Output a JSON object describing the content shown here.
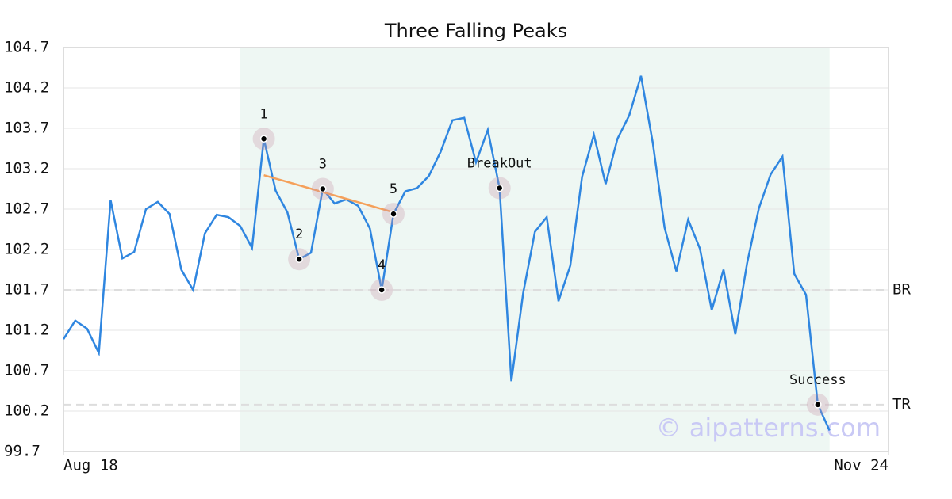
{
  "chart_data": {
    "type": "line",
    "title": "Three Falling Peaks",
    "values": [
      101.09,
      101.32,
      101.22,
      100.92,
      102.81,
      102.09,
      102.17,
      102.7,
      102.79,
      102.64,
      101.95,
      101.7,
      102.4,
      102.63,
      102.6,
      102.49,
      102.22,
      103.57,
      102.93,
      102.66,
      102.08,
      102.16,
      102.95,
      102.77,
      102.82,
      102.74,
      102.46,
      101.7,
      102.64,
      102.92,
      102.96,
      103.11,
      103.41,
      103.8,
      103.83,
      103.28,
      103.68,
      102.96,
      100.57,
      101.66,
      102.42,
      102.6,
      101.56,
      102.0,
      103.1,
      103.62,
      103.01,
      103.57,
      103.86,
      104.35,
      103.52,
      102.47,
      101.93,
      102.57,
      102.21,
      101.45,
      101.95,
      101.15,
      102.03,
      102.71,
      103.13,
      103.35,
      101.9,
      101.64,
      100.28,
      99.96
    ],
    "color": "#2f86e0",
    "xlim": [
      0,
      70
    ],
    "xticks": [
      {
        "value": 0,
        "label": "Aug 18"
      },
      {
        "value": 70,
        "label": "Nov 24"
      }
    ],
    "ylim": [
      99.7,
      104.7
    ],
    "yticks": [
      99.7,
      100.2,
      100.7,
      101.2,
      101.7,
      102.2,
      102.7,
      103.2,
      103.7,
      104.2,
      104.7
    ],
    "grid": true,
    "shaded": [
      15,
      65
    ],
    "levels": [
      {
        "label": "BR",
        "value": 101.7
      },
      {
        "label": "TR",
        "value": 100.28
      }
    ],
    "trendline": {
      "x": [
        17,
        28
      ],
      "y": [
        103.12,
        102.66
      ],
      "color": "#f5a05a"
    },
    "annotations": [
      {
        "label": "1",
        "x": 17,
        "y": 103.57
      },
      {
        "label": "2",
        "x": 20,
        "y": 102.08
      },
      {
        "label": "3",
        "x": 22,
        "y": 102.95
      },
      {
        "label": "4",
        "x": 27,
        "y": 101.7
      },
      {
        "label": "5",
        "x": 28,
        "y": 102.64
      },
      {
        "label": "BreakOut",
        "x": 37,
        "y": 102.96
      },
      {
        "label": "Success",
        "x": 64,
        "y": 100.28
      }
    ],
    "watermark": "© aipatterns.com"
  }
}
